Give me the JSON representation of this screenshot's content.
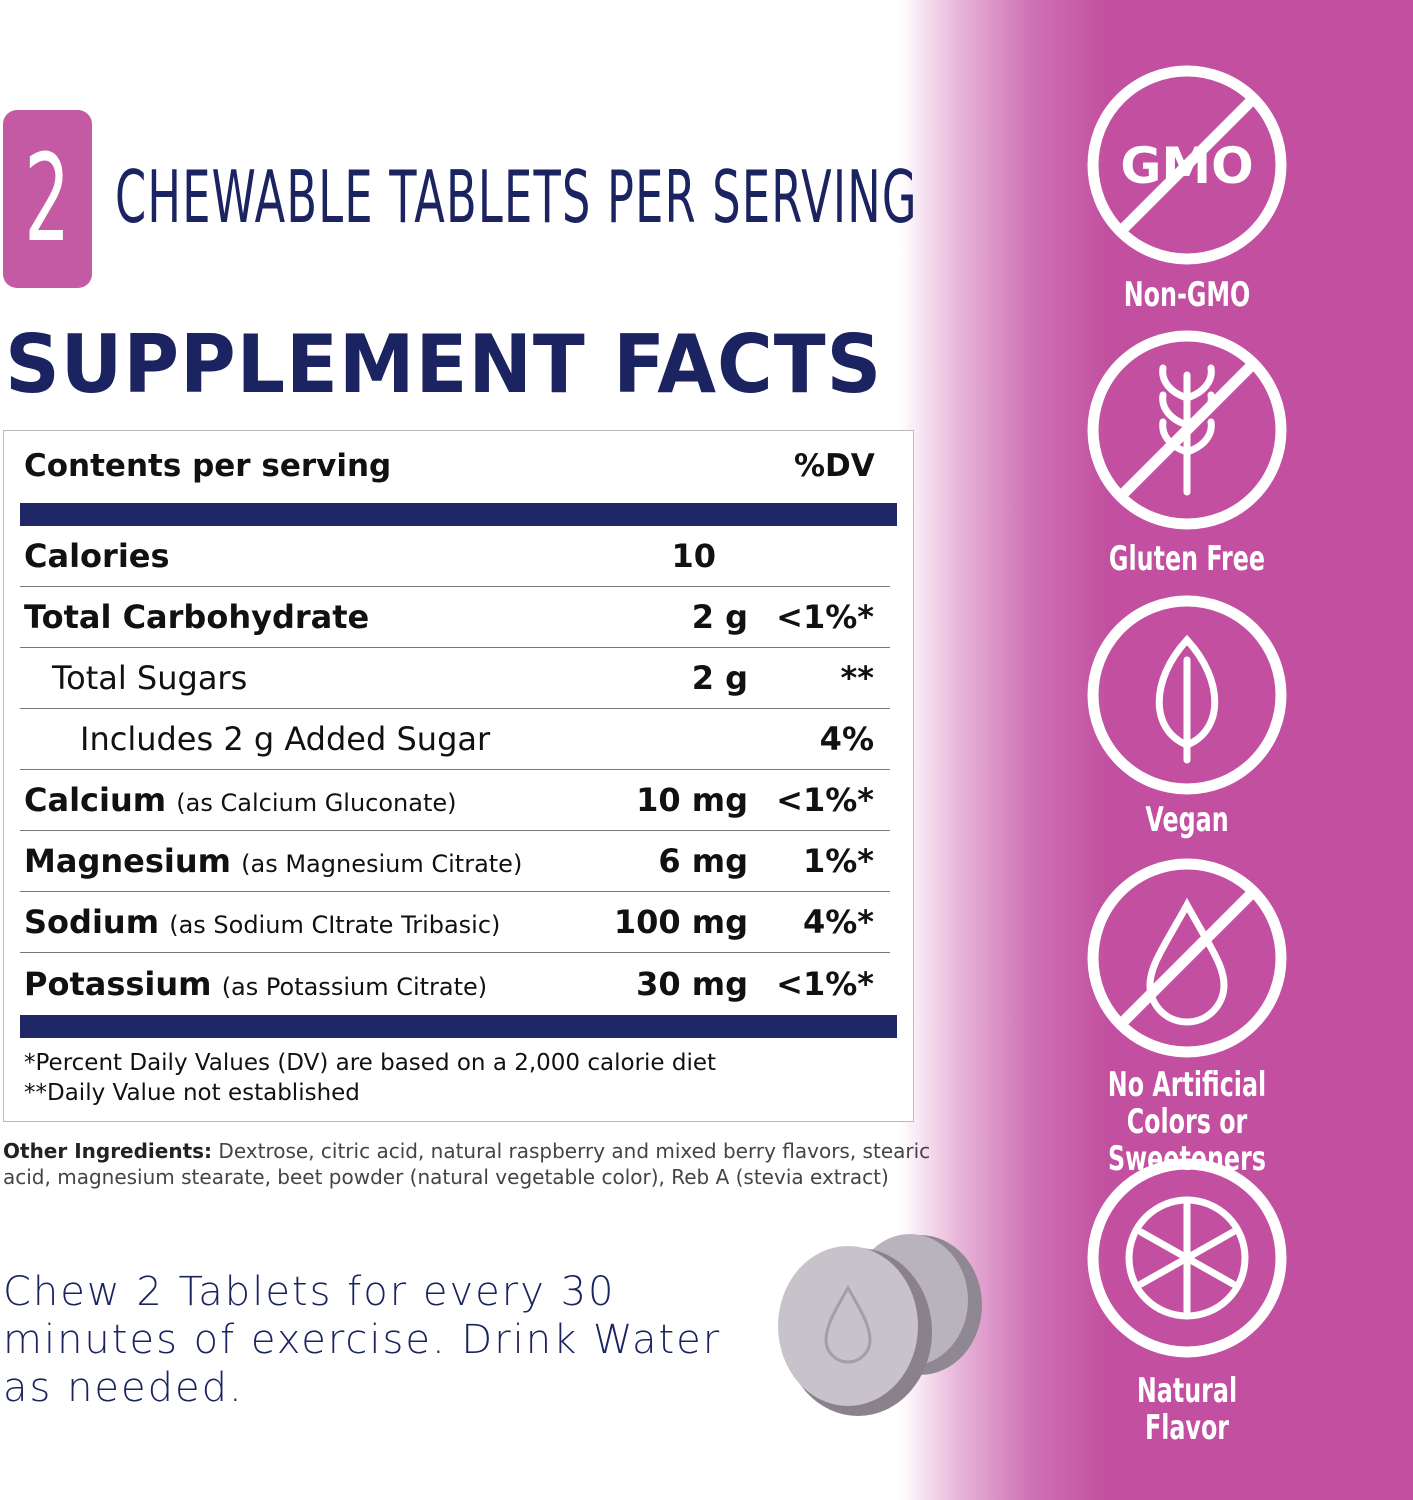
{
  "serving": {
    "count": "2",
    "text": "CHEWABLE TABLETS PER SERVING"
  },
  "title": "SUPPLEMENT FACTS",
  "table": {
    "header": [
      "Contents per serving",
      "%DV"
    ],
    "rows": [
      {
        "name": "Calories",
        "amount": "10"
      },
      {
        "name": "Total Carbohydrate",
        "amount": "2 g",
        "dv": "<1%*",
        "sub": [
          {
            "name": "Total Sugars",
            "amount": "2 g",
            "dv": "**",
            "sub": [
              {
                "name": "Includes 2 g Added Sugar",
                "dv": "4%"
              }
            ]
          }
        ]
      },
      {
        "name": "Calcium",
        "note": "(as Calcium Gluconate)",
        "amount": "10 mg",
        "dv": "<1%*"
      },
      {
        "name": "Magnesium",
        "note": "(as Magnesium Citrate)",
        "amount": "6 mg",
        "dv": "1%*"
      },
      {
        "name": "Sodium",
        "note": "(as Sodium CItrate Tribasic)",
        "amount": "100 mg",
        "dv": "4%*"
      },
      {
        "name": "Potassium",
        "note": "(as Potassium Citrate)",
        "amount": "30 mg",
        "dv": "<1%*"
      }
    ],
    "footnotes": [
      "*Percent Daily Values (DV) are based on a 2,000 calorie diet",
      "**Daily Value not established"
    ]
  },
  "other_ingredients": {
    "label": "Other Ingredients:",
    "text": "Dextrose, citric acid, natural raspberry and mixed berry flavors, stearic acid, magnesium stearate, beet powder (natural vegetable color), Reb A (stevia extract)"
  },
  "directions": "Chew 2 Tablets for every 30 minutes of exercise. Drink Water as needed.",
  "badge_icon_text": "GMO",
  "badges": [
    "Non-GMO",
    "Gluten Free",
    "Vegan",
    "No Artificial Colors or Sweeteners",
    "Natural Flavor"
  ]
}
